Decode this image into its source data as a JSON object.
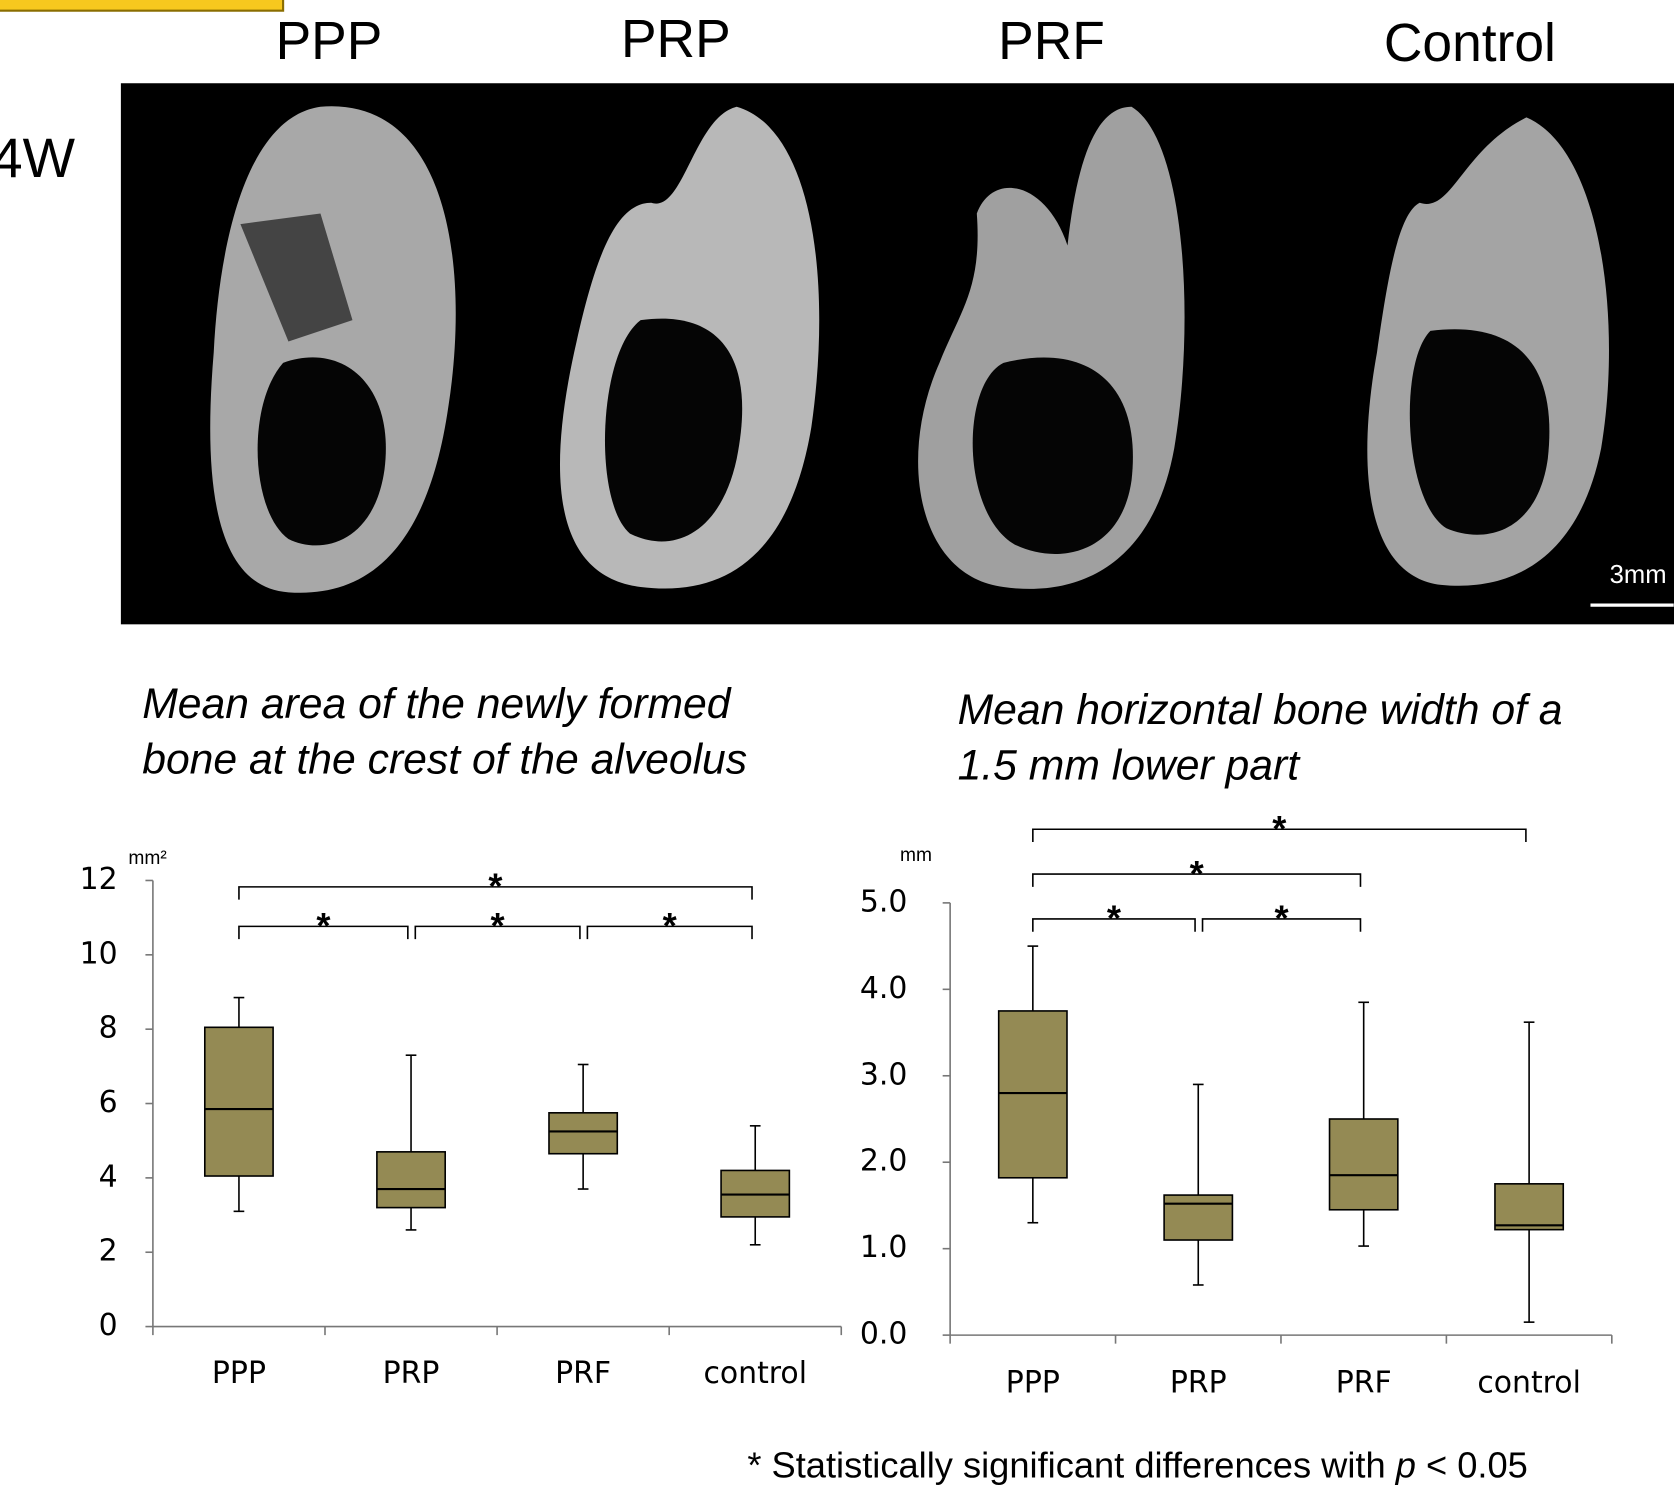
{
  "figure": {
    "columns": [
      "PPP",
      "PRP",
      "PRF",
      "Control"
    ],
    "row_label": "4W",
    "scale_bar": "3mm"
  },
  "chart_data": [
    {
      "type": "box",
      "title": [
        "Mean area of the newly formed",
        "bone at the crest of the alveolus"
      ],
      "y_unit": "mm²",
      "categories": [
        "PPP",
        "PRP",
        "PRF",
        "control"
      ],
      "min": [
        3.1,
        2.6,
        3.7,
        2.2
      ],
      "q1": [
        4.05,
        3.2,
        4.65,
        2.95
      ],
      "median": [
        5.85,
        3.7,
        5.25,
        3.55
      ],
      "q3": [
        8.05,
        4.7,
        5.75,
        4.2
      ],
      "max": [
        8.85,
        7.3,
        7.05,
        5.4
      ],
      "color": "#948a54",
      "ylim": [
        0,
        12
      ],
      "yticks": [
        0,
        2,
        4,
        6,
        8,
        10,
        12
      ],
      "significance": [
        {
          "from": "PPP",
          "to": "control",
          "label": "*"
        },
        {
          "from": "PPP",
          "to": "PRP",
          "label": "*"
        },
        {
          "from": "PRP",
          "to": "PRF",
          "label": "*"
        },
        {
          "from": "PRF",
          "to": "control",
          "label": "*"
        }
      ]
    },
    {
      "type": "box",
      "title": [
        "Mean horizontal bone width of a",
        "1.5 mm lower part"
      ],
      "y_unit": "mm",
      "categories": [
        "PPP",
        "PRP",
        "PRF",
        "control"
      ],
      "min": [
        1.3,
        0.58,
        1.03,
        0.15
      ],
      "q1": [
        1.82,
        1.1,
        1.45,
        1.22
      ],
      "median": [
        2.8,
        1.52,
        1.85,
        1.27
      ],
      "q3": [
        3.75,
        1.62,
        2.5,
        1.75
      ],
      "max": [
        4.5,
        2.9,
        3.85,
        3.62
      ],
      "color": "#948a54",
      "ylim": [
        0,
        5
      ],
      "yticks": [
        {
          "value": 0,
          "label": "0.0"
        },
        {
          "value": 1,
          "label": "1.0"
        },
        {
          "value": 2,
          "label": "2.0"
        },
        {
          "value": 3,
          "label": "3.0"
        },
        {
          "value": 4,
          "label": "4.0"
        },
        {
          "value": 5,
          "label": "5.0"
        }
      ],
      "significance": [
        {
          "from": "PPP",
          "to": "control",
          "label": "*"
        },
        {
          "from": "PPP",
          "to": "PRF",
          "label": "*"
        },
        {
          "from": "PPP",
          "to": "PRP",
          "label": "*"
        },
        {
          "from": "PRP",
          "to": "PRF",
          "label": "*"
        }
      ]
    }
  ],
  "footnote": {
    "prefix": "* Statistically significant differences with ",
    "italic": "p",
    "suffix": " < 0.05"
  }
}
